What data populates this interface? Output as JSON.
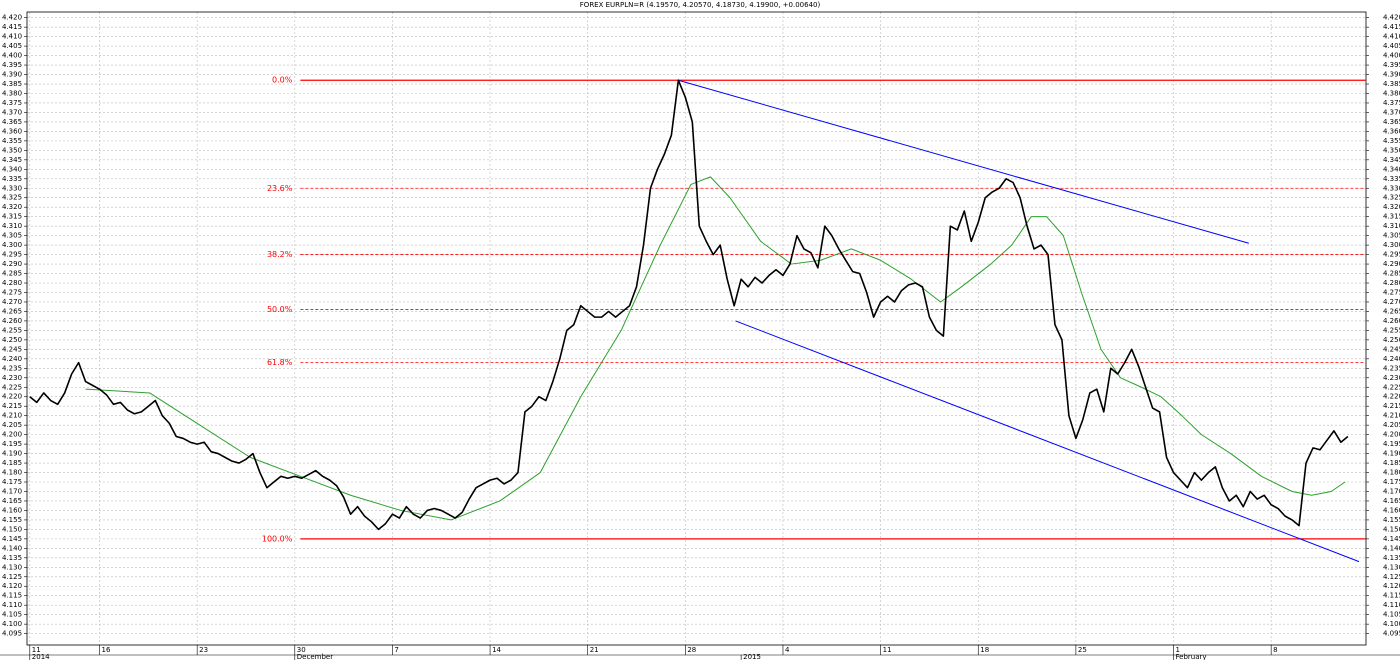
{
  "chart_data": {
    "type": "line",
    "title": "FOREX EURPLN=R (4.19570, 4.20570, 4.18730, 4.19900, +0.00640)",
    "grid": true,
    "xlim": [
      -0.2,
      95.8
    ],
    "ylim": [
      4.089,
      4.423
    ],
    "xticks": [
      {
        "value": 0,
        "label": "11"
      },
      {
        "value": 5,
        "label": "16"
      },
      {
        "value": 12,
        "label": "23"
      },
      {
        "value": 19,
        "label": "30"
      },
      {
        "value": 26,
        "label": "7"
      },
      {
        "value": 33,
        "label": "14"
      },
      {
        "value": 40,
        "label": "21"
      },
      {
        "value": 47,
        "label": "28"
      },
      {
        "value": 54,
        "label": "4"
      },
      {
        "value": 61,
        "label": "11"
      },
      {
        "value": 68,
        "label": "18"
      },
      {
        "value": 75,
        "label": "25"
      },
      {
        "value": 82,
        "label": "1"
      },
      {
        "value": 89,
        "label": "8"
      }
    ],
    "xticks_major": [
      {
        "value": 0,
        "label": "2014"
      },
      {
        "value": 19,
        "label": "December"
      },
      {
        "value": 51,
        "label": "2015"
      },
      {
        "value": 82,
        "label": "February"
      }
    ],
    "yticks": [
      4.095,
      {
        "value": 4.1,
        "label": "4.100"
      },
      4.105,
      {
        "value": 4.11,
        "label": "4.110"
      },
      4.115,
      {
        "value": 4.12,
        "label": "4.120"
      },
      4.125,
      {
        "value": 4.13,
        "label": "4.130"
      },
      4.135,
      {
        "value": 4.14,
        "label": "4.140"
      },
      4.145,
      {
        "value": 4.15,
        "label": "4.150"
      },
      4.155,
      {
        "value": 4.16,
        "label": "4.160"
      },
      4.165,
      {
        "value": 4.17,
        "label": "4.170"
      },
      4.175,
      {
        "value": 4.18,
        "label": "4.180"
      },
      4.185,
      {
        "value": 4.19,
        "label": "4.190"
      },
      4.195,
      {
        "value": 4.2,
        "label": "4.200"
      },
      4.205,
      {
        "value": 4.21,
        "label": "4.210"
      },
      4.215,
      {
        "value": 4.22,
        "label": "4.220"
      },
      4.225,
      {
        "value": 4.23,
        "label": "4.230"
      },
      4.235,
      {
        "value": 4.24,
        "label": "4.240"
      },
      4.245,
      {
        "value": 4.25,
        "label": "4.250"
      },
      4.255,
      {
        "value": 4.26,
        "label": "4.260"
      },
      4.265,
      {
        "value": 4.27,
        "label": "4.270"
      },
      4.275,
      {
        "value": 4.28,
        "label": "4.280"
      },
      4.285,
      {
        "value": 4.29,
        "label": "4.290"
      },
      4.295,
      {
        "value": 4.3,
        "label": "4.300"
      },
      4.305,
      {
        "value": 4.31,
        "label": "4.310"
      },
      4.315,
      {
        "value": 4.32,
        "label": "4.320"
      },
      4.325,
      {
        "value": 4.33,
        "label": "4.330"
      },
      4.335,
      {
        "value": 4.34,
        "label": "4.340"
      },
      4.345,
      {
        "value": 4.35,
        "label": "4.350"
      },
      4.355,
      {
        "value": 4.36,
        "label": "4.360"
      },
      4.365,
      {
        "value": 4.37,
        "label": "4.370"
      },
      4.375,
      {
        "value": 4.38,
        "label": "4.380"
      },
      4.385,
      {
        "value": 4.39,
        "label": "4.390"
      },
      4.395,
      {
        "value": 4.4,
        "label": "4.400"
      },
      4.405,
      {
        "value": 4.41,
        "label": "4.410"
      },
      4.415,
      {
        "value": 4.42,
        "label": "4.420"
      }
    ],
    "series": [
      {
        "color": "#000000",
        "width": 1.6,
        "x": [
          0,
          0.5,
          1,
          1.5,
          2,
          2.5,
          3,
          3.5,
          4,
          4.5,
          5,
          5.5,
          6,
          6.5,
          7,
          7.5,
          8,
          8.5,
          9,
          9.5,
          10,
          10.5,
          11,
          11.5,
          12,
          12.5,
          13,
          13.5,
          14,
          14.5,
          15,
          15.5,
          16,
          16.5,
          17,
          17.5,
          18,
          18.5,
          19,
          19.5,
          20,
          20.5,
          21,
          21.5,
          22,
          22.5,
          23,
          23.5,
          24,
          24.5,
          25,
          25.5,
          26,
          26.5,
          27,
          27.5,
          28,
          28.5,
          29,
          29.5,
          30,
          30.5,
          31,
          31.5,
          32,
          32.5,
          33,
          33.5,
          34,
          34.5,
          35,
          35.5,
          36,
          36.5,
          37,
          37.5,
          38,
          38.5,
          39,
          39.5,
          40,
          40.5,
          41,
          41.5,
          42,
          42.5,
          43,
          43.5,
          44,
          44.5,
          45,
          45.5,
          46,
          46.5,
          47,
          47.5,
          48,
          48.5,
          49,
          49.5,
          50,
          50.5,
          51,
          51.5,
          52,
          52.5,
          53,
          53.5,
          54,
          54.5,
          55,
          55.5,
          56,
          56.5,
          57,
          57.5,
          58,
          58.5,
          59,
          59.5,
          60,
          60.5,
          61,
          61.5,
          62,
          62.5,
          63,
          63.5,
          64,
          64.5,
          65,
          65.5,
          66,
          66.5,
          67,
          67.5,
          68,
          68.5,
          69,
          69.5,
          70,
          70.5,
          71,
          71.5,
          72,
          72.5,
          73,
          73.5,
          74,
          74.5,
          75,
          75.5,
          76,
          76.5,
          77,
          77.5,
          78,
          78.5,
          79,
          79.5,
          80,
          80.5,
          81,
          81.5,
          82,
          82.5,
          83,
          83.5,
          84,
          84.5,
          85,
          85.5,
          86,
          86.5,
          87,
          87.5,
          88,
          88.5,
          89,
          89.5,
          90,
          90.5,
          91,
          91.5,
          92,
          92.5,
          93,
          93.5,
          94,
          94.5
        ],
        "values": [
          4.22,
          4.217,
          4.222,
          4.218,
          4.216,
          4.222,
          4.232,
          4.238,
          4.228,
          4.226,
          4.224,
          4.221,
          4.216,
          4.217,
          4.213,
          4.211,
          4.212,
          4.215,
          4.218,
          4.21,
          4.206,
          4.199,
          4.198,
          4.196,
          4.195,
          4.196,
          4.191,
          4.19,
          4.188,
          4.186,
          4.185,
          4.187,
          4.19,
          4.18,
          4.172,
          4.175,
          4.178,
          4.177,
          4.178,
          4.177,
          4.179,
          4.181,
          4.178,
          4.176,
          4.173,
          4.167,
          4.158,
          4.162,
          4.157,
          4.154,
          4.15,
          4.153,
          4.158,
          4.156,
          4.162,
          4.158,
          4.156,
          4.16,
          4.161,
          4.16,
          4.158,
          4.156,
          4.159,
          4.166,
          4.172,
          4.174,
          4.176,
          4.177,
          4.174,
          4.176,
          4.18,
          4.212,
          4.215,
          4.22,
          4.218,
          4.228,
          4.24,
          4.255,
          4.258,
          4.268,
          4.265,
          4.262,
          4.262,
          4.265,
          4.262,
          4.265,
          4.268,
          4.278,
          4.3,
          4.33,
          4.34,
          4.348,
          4.358,
          4.387,
          4.378,
          4.365,
          4.31,
          4.302,
          4.295,
          4.3,
          4.282,
          4.268,
          4.282,
          4.278,
          4.283,
          4.28,
          4.284,
          4.287,
          4.284,
          4.29,
          4.305,
          4.298,
          4.296,
          4.288,
          4.31,
          4.305,
          4.298,
          4.292,
          4.286,
          4.285,
          4.275,
          4.262,
          4.27,
          4.273,
          4.27,
          4.276,
          4.279,
          4.28,
          4.278,
          4.262,
          4.255,
          4.252,
          4.31,
          4.308,
          4.318,
          4.302,
          4.312,
          4.325,
          4.328,
          4.33,
          4.335,
          4.333,
          4.325,
          4.31,
          4.298,
          4.3,
          4.295,
          4.258,
          4.25,
          4.21,
          4.198,
          4.208,
          4.222,
          4.224,
          4.212,
          4.235,
          4.232,
          4.238,
          4.245,
          4.236,
          4.225,
          4.214,
          4.212,
          4.188,
          4.18,
          4.176,
          4.172,
          4.18,
          4.176,
          4.18,
          4.183,
          4.172,
          4.165,
          4.168,
          4.162,
          4.17,
          4.166,
          4.168,
          4.163,
          4.161,
          4.157,
          4.155,
          4.152,
          4.185,
          4.193,
          4.192,
          4.197,
          4.202,
          4.196,
          4.199
        ]
      },
      {
        "color": "#2ca02c",
        "width": 1,
        "x": [
          4.0,
          8.6,
          12.2,
          15.8,
          19.4,
          23.0,
          26.6,
          30.2,
          33.7,
          36.6,
          39.5,
          42.4,
          45.2,
          47.4,
          48.8,
          50.2,
          52.4,
          54.6,
          56.7,
          58.9,
          61.0,
          63.2,
          65.3,
          66.8,
          68.9,
          70.4,
          71.8,
          72.9,
          74.1,
          75.4,
          76.8,
          78.2,
          79.7,
          81.1,
          82.6,
          84.0,
          86.1,
          88.3,
          90.5,
          91.9,
          93.3,
          94.3
        ],
        "values": [
          4.224,
          4.222,
          4.205,
          4.188,
          4.178,
          4.168,
          4.16,
          4.155,
          4.165,
          4.18,
          4.22,
          4.255,
          4.3,
          4.332,
          4.336,
          4.325,
          4.302,
          4.29,
          4.292,
          4.298,
          4.292,
          4.282,
          4.27,
          4.278,
          4.29,
          4.3,
          4.315,
          4.315,
          4.305,
          4.275,
          4.245,
          4.23,
          4.225,
          4.22,
          4.21,
          4.2,
          4.19,
          4.178,
          4.17,
          4.168,
          4.17,
          4.175
        ]
      }
    ],
    "fibonacci": {
      "color": "#ff0000",
      "x_start": 19.4,
      "levels": [
        {
          "label": "0.0%",
          "value": 4.387,
          "dashed": false
        },
        {
          "label": "23.6%",
          "value": 4.33,
          "dashed": true
        },
        {
          "label": "38.2%",
          "value": 4.295,
          "dashed": true
        },
        {
          "label": "50.0%",
          "value": 4.266,
          "dashed": true
        },
        {
          "label": "61.8%",
          "value": 4.238,
          "dashed": true
        },
        {
          "label": "100.0%",
          "value": 4.145,
          "dashed": false
        }
      ]
    },
    "trendlines": [
      {
        "color": "#0000ff",
        "x": [
          46.5,
          87.4
        ],
        "values": [
          4.387,
          4.301
        ]
      },
      {
        "color": "#0000ff",
        "x": [
          50.6,
          95.3
        ],
        "values": [
          4.26,
          4.133
        ]
      }
    ]
  }
}
